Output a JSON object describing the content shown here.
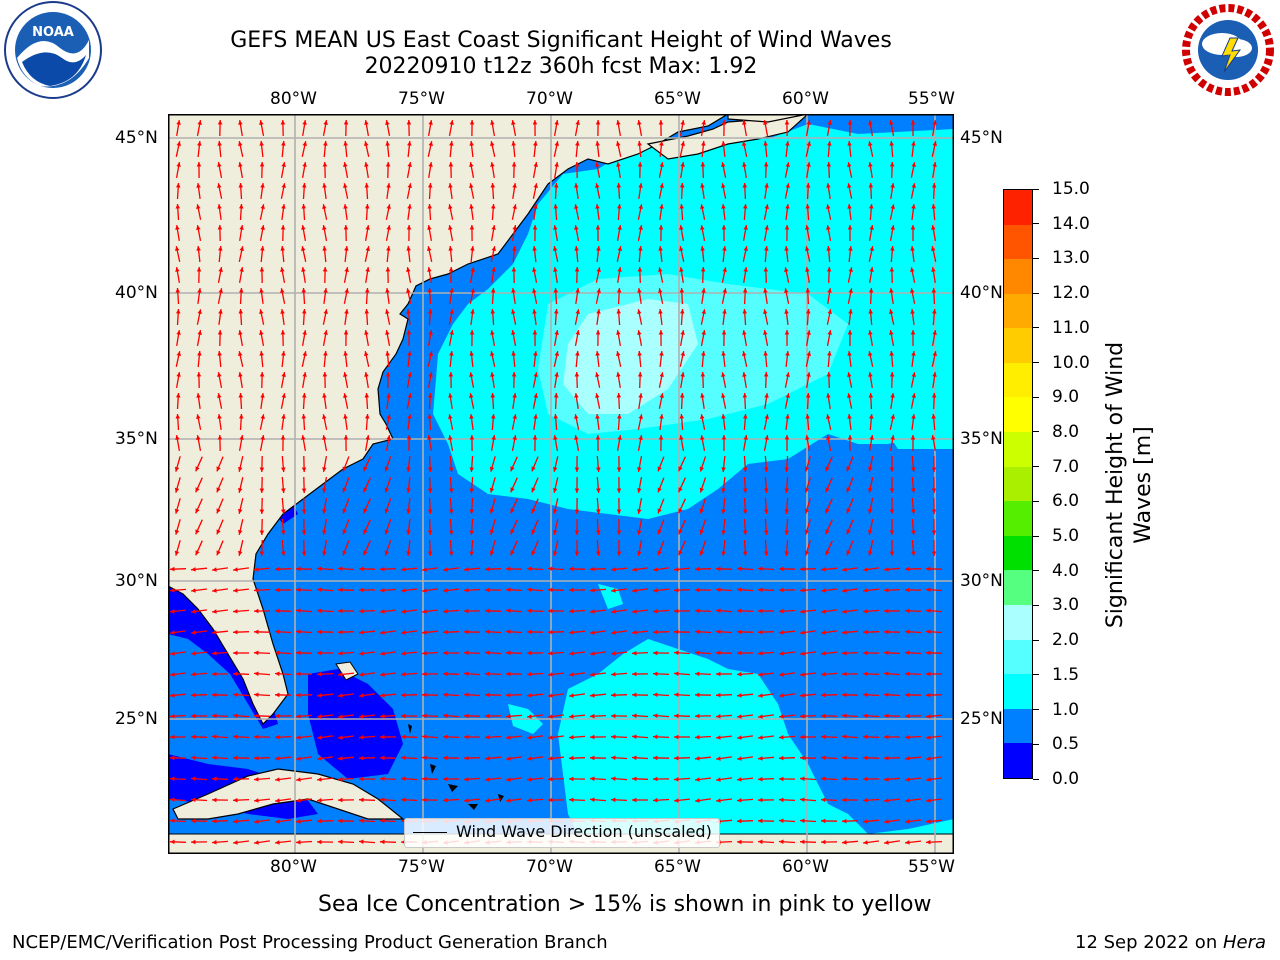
{
  "header": {
    "title_line1": "GEFS MEAN US East Coast Significant Height of Wind Waves",
    "title_line2": "20220910 t12z 360h fcst   Max: 1.92",
    "left_logo": "NOAA",
    "right_logo": "NATIONAL WEATHER SERVICE"
  },
  "map": {
    "lon_labels": [
      "80°W",
      "75°W",
      "70°W",
      "65°W",
      "60°W",
      "55°W"
    ],
    "lat_labels": [
      "45°N",
      "40°N",
      "35°N",
      "30°N",
      "25°N"
    ],
    "legend_label": "Wind Wave Direction (unscaled)",
    "colors": {
      "land": "#efeddc",
      "wave_0_0p5": "#0000ff",
      "wave_0p5_1": "#0080ff",
      "wave_1_1p5": "#00ffff",
      "wave_1p5_2": "#55ffff",
      "wave_2_3": "#aaffff",
      "arrow": "#ff0000",
      "grid": "#b0b0b0"
    }
  },
  "colorbar": {
    "label": "Significant Height of Wind Waves [m]",
    "ticks": [
      "15.0",
      "14.0",
      "13.0",
      "12.0",
      "11.0",
      "10.0",
      "9.0",
      "8.0",
      "7.0",
      "6.0",
      "5.0",
      "4.0",
      "3.0",
      "2.0",
      "1.5",
      "1.0",
      "0.5",
      "0.0"
    ],
    "colors_bottom_to_top": [
      "#0000ff",
      "#0080ff",
      "#00ffff",
      "#55ffff",
      "#aaffff",
      "#55ff80",
      "#00e000",
      "#55ee00",
      "#aaee00",
      "#ccff00",
      "#ffff00",
      "#ffee00",
      "#ffcc00",
      "#ffaa00",
      "#ff8800",
      "#ff5500",
      "#ff2200"
    ]
  },
  "footer": {
    "note": "Sea Ice Concentration > 15% is shown in pink to yellow",
    "credit": "NCEP/EMC/Verification Post Processing Product Generation Branch",
    "date": "12 Sep 2022 on ",
    "host": "Hera"
  }
}
